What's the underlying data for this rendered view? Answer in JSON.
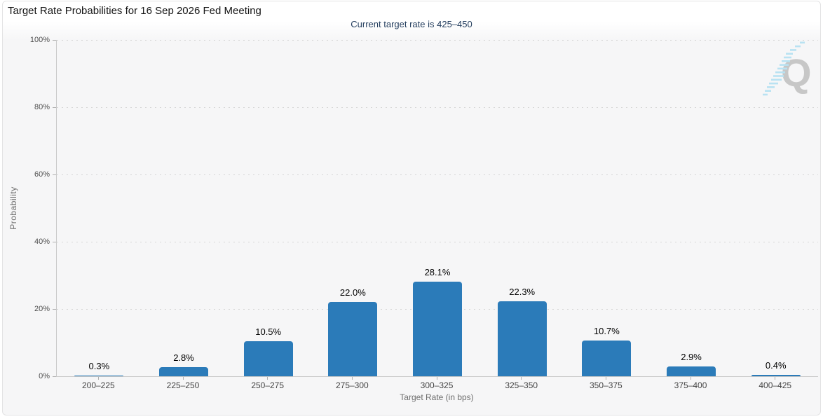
{
  "chart_data": {
    "type": "bar",
    "title": "Target Rate Probabilities for 16 Sep 2026 Fed Meeting",
    "subtitle": "Current target rate is 425–450",
    "categories": [
      "200–225",
      "225–250",
      "250–275",
      "275–300",
      "300–325",
      "325–350",
      "350–375",
      "375–400",
      "400–425"
    ],
    "values": [
      0.3,
      2.8,
      10.5,
      22.0,
      28.1,
      22.3,
      10.7,
      2.9,
      0.4
    ],
    "value_labels": [
      "0.3%",
      "2.8%",
      "10.5%",
      "22.0%",
      "28.1%",
      "22.3%",
      "10.7%",
      "2.9%",
      "0.4%"
    ],
    "xlabel": "Target Rate (in bps)",
    "ylabel": "Probability",
    "ylim": [
      0,
      100
    ],
    "yticks": [
      0,
      20,
      40,
      60,
      80,
      100
    ],
    "ytick_labels": [
      "0%",
      "20%",
      "40%",
      "60%",
      "80%",
      "100%"
    ],
    "grid": "horizontal-dotted",
    "legend": "none",
    "bar_color": "#2b7bb9"
  },
  "icons": {
    "watermark": "quikstrike-q-logo"
  },
  "colors": {
    "bar": "#2b7bb9",
    "subtitle_text": "#253f5f",
    "panel_background": "#f6f6f7",
    "gridline": "#d6d6d6",
    "axis_line": "#c9c9c9",
    "watermark_gray": "#c7c7c7",
    "watermark_blue": "#b9e2f2"
  }
}
